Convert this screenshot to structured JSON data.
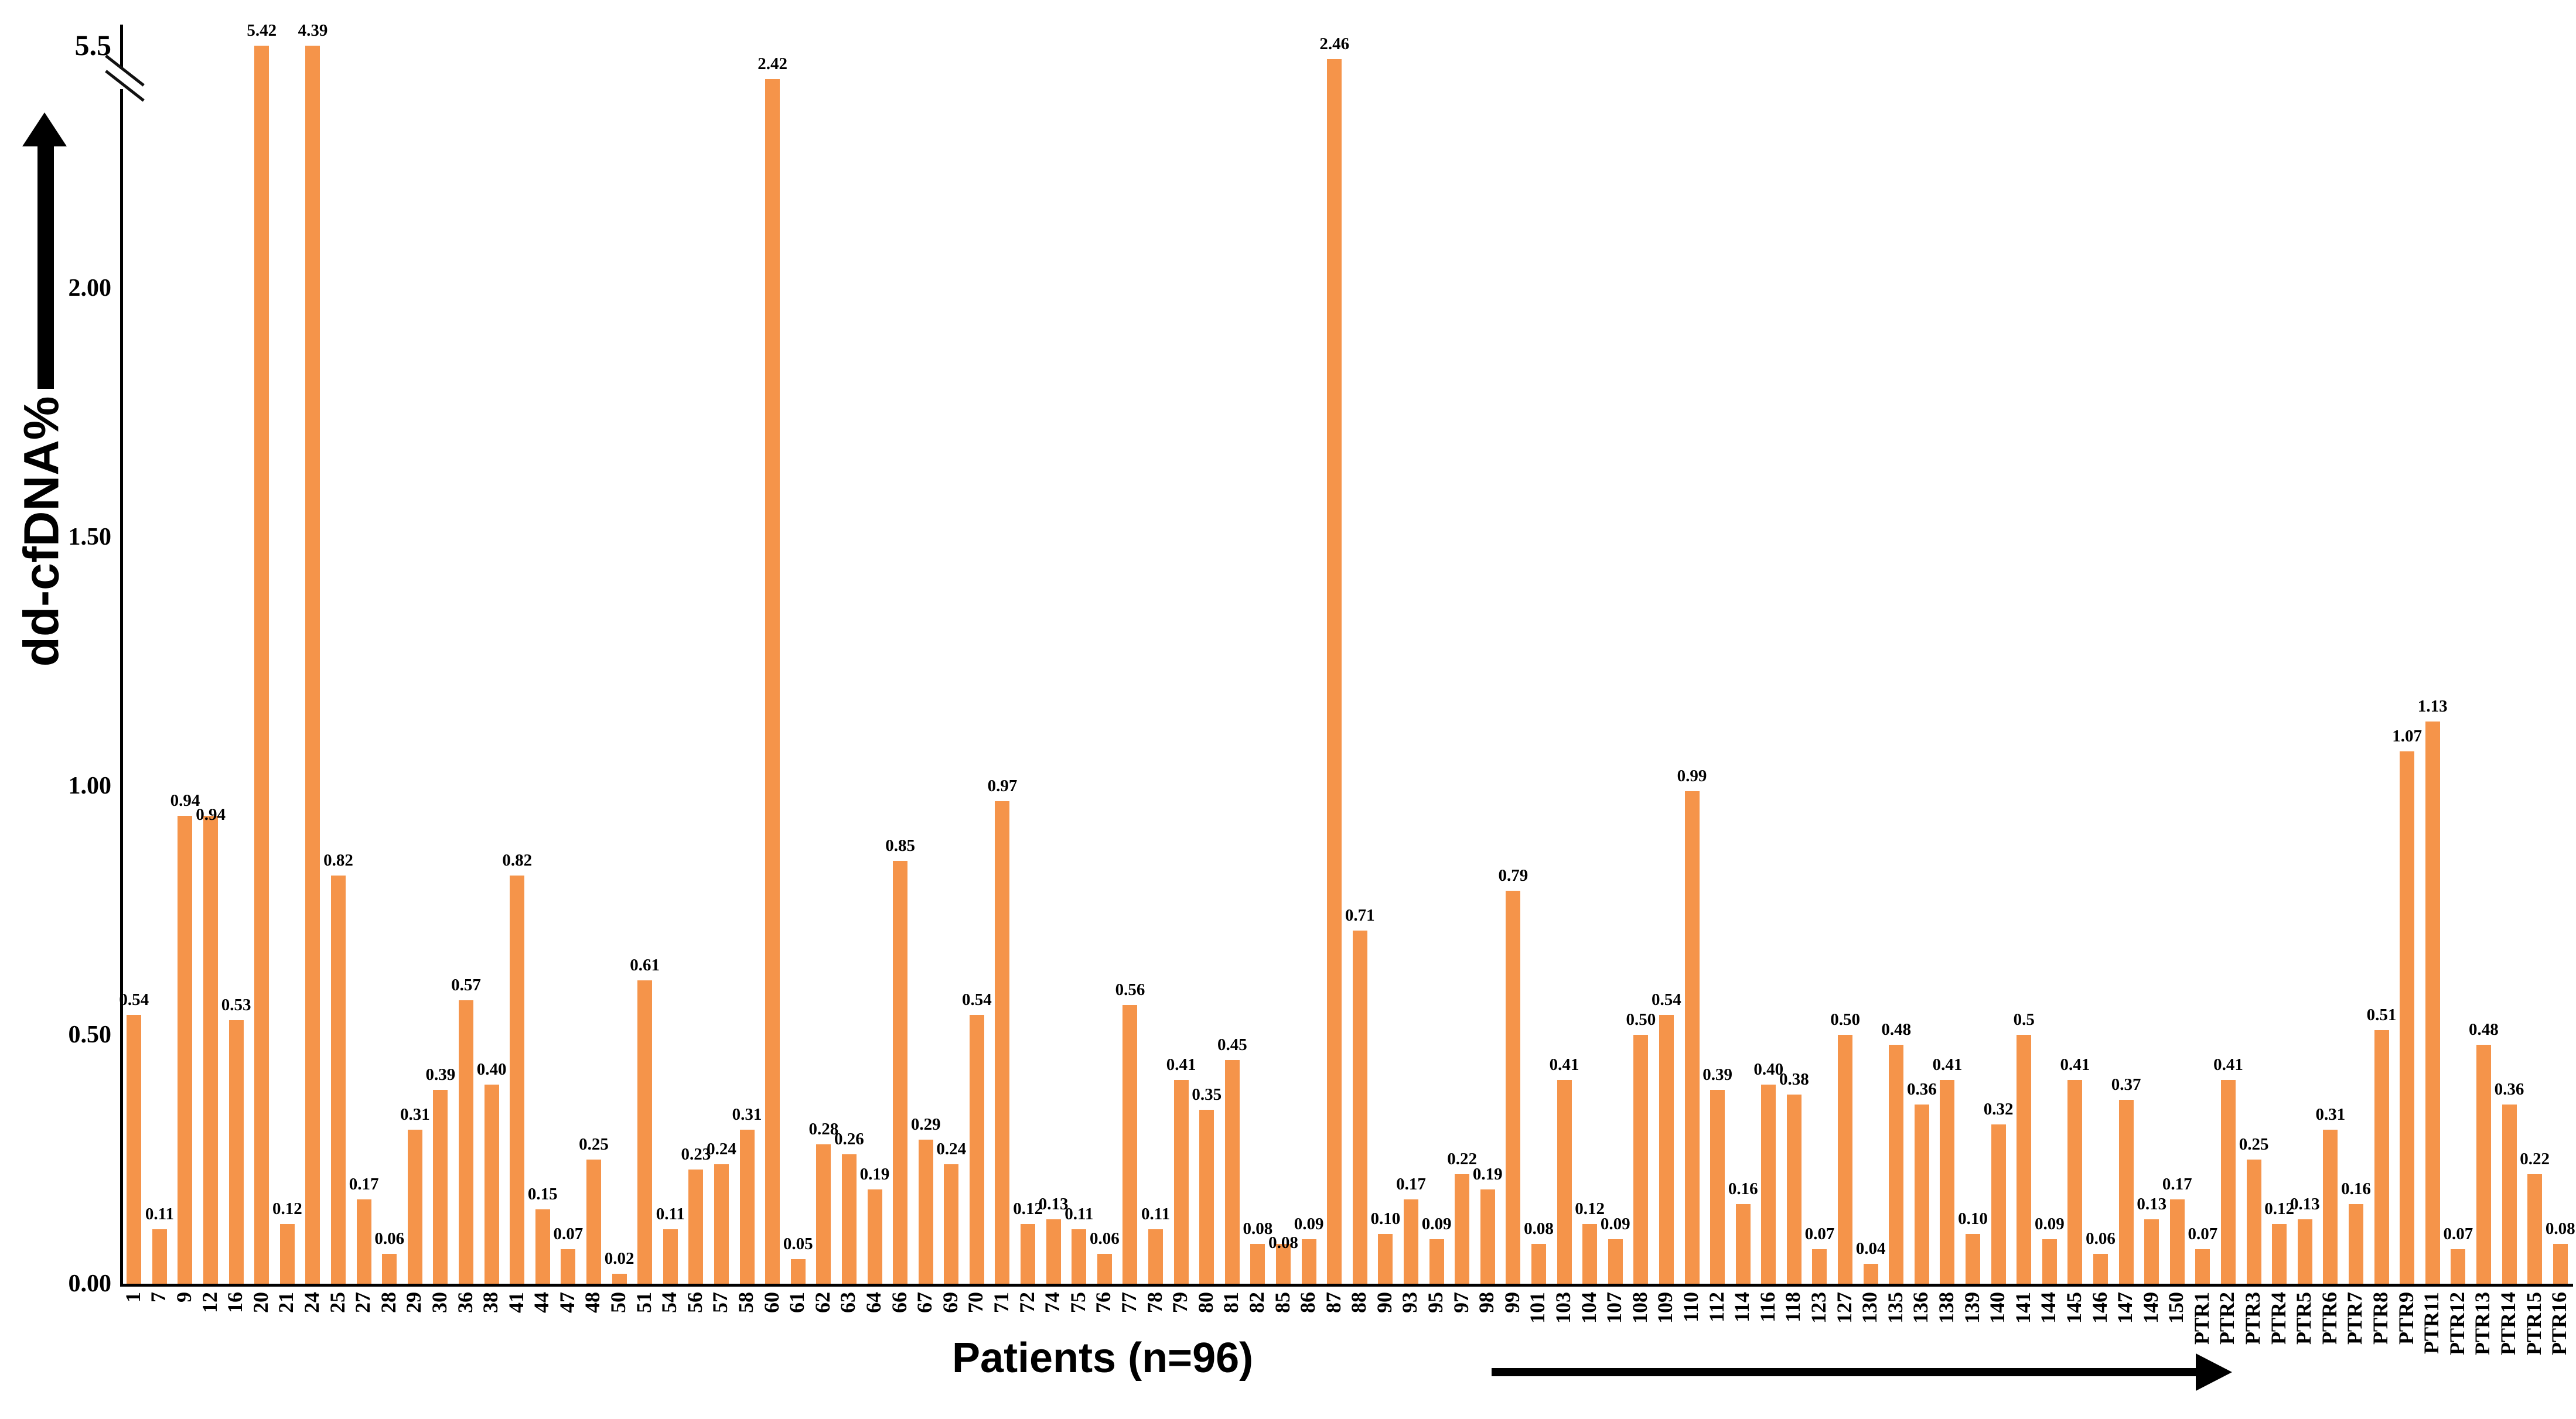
{
  "figure": {
    "bar_color": "#F5944A",
    "text_color": "#000000",
    "y_axis": {
      "label": "dd-cfDNA%",
      "ticks": [
        "0.00",
        "0.50",
        "1.00",
        "1.50",
        "2.00"
      ],
      "tick_values": [
        0,
        0.5,
        1.0,
        1.5,
        2.0
      ],
      "break_tick": "5.5",
      "has_axis_break": true
    },
    "x_axis": {
      "label": "Patients (n=96)"
    }
  },
  "chart_data": {
    "type": "bar",
    "title": "",
    "xlabel": "Patients (n=96)",
    "ylabel": "dd-cfDNA%",
    "ylim": [
      0,
      5.5
    ],
    "y_ticks": [
      0,
      0.5,
      1.0,
      1.5,
      2.0,
      5.5
    ],
    "axis_break_between": [
      2.0,
      5.5
    ],
    "grid": false,
    "legend": false,
    "categories": [
      "1",
      "7",
      "9",
      "12",
      "16",
      "20",
      "21",
      "24",
      "25",
      "27",
      "28",
      "29",
      "30",
      "36",
      "38",
      "41",
      "44",
      "47",
      "48",
      "50",
      "51",
      "54",
      "56",
      "57",
      "58",
      "60",
      "61",
      "62",
      "63",
      "64",
      "66",
      "67",
      "69",
      "70",
      "71",
      "72",
      "74",
      "75",
      "76",
      "77",
      "78",
      "79",
      "80",
      "81",
      "82",
      "85",
      "86",
      "87",
      "88",
      "90",
      "93",
      "95",
      "97",
      "98",
      "99",
      "101",
      "103",
      "104",
      "107",
      "108",
      "109",
      "110",
      "112",
      "114",
      "116",
      "118",
      "123",
      "127",
      "130",
      "135",
      "136",
      "138",
      "139",
      "140",
      "141",
      "144",
      "145",
      "146",
      "147",
      "149",
      "150",
      "PTR1",
      "PTR2",
      "PTR3",
      "PTR4",
      "PTR5",
      "PTR6",
      "PTR7",
      "PTR8",
      "PTR9",
      "PTR11",
      "PTR12",
      "PTR13",
      "PTR14",
      "PTR15",
      "PTR16"
    ],
    "values": [
      0.54,
      0.11,
      0.94,
      0.94,
      0.53,
      5.42,
      0.12,
      4.39,
      0.82,
      0.17,
      0.06,
      0.31,
      0.39,
      0.57,
      0.4,
      0.82,
      0.15,
      0.07,
      0.25,
      0.02,
      0.61,
      0.11,
      0.23,
      0.24,
      0.31,
      2.42,
      0.05,
      0.28,
      0.26,
      0.19,
      0.85,
      0.29,
      0.24,
      0.54,
      0.97,
      0.12,
      0.13,
      0.11,
      0.06,
      0.56,
      0.11,
      0.41,
      0.35,
      0.45,
      0.08,
      0.08,
      0.09,
      2.46,
      0.71,
      0.1,
      0.17,
      0.09,
      0.22,
      0.19,
      0.79,
      0.08,
      0.41,
      0.12,
      0.09,
      0.5,
      0.54,
      0.99,
      0.39,
      0.16,
      0.4,
      0.38,
      0.07,
      0.5,
      0.04,
      0.48,
      0.36,
      0.41,
      0.1,
      0.32,
      0.5,
      0.09,
      0.41,
      0.06,
      0.37,
      0.13,
      0.17,
      0.07,
      0.41,
      0.25,
      0.12,
      0.13,
      0.31,
      0.16,
      0.51,
      1.07,
      1.13,
      0.07,
      0.48,
      0.36,
      0.22,
      0.08
    ],
    "value_labels": [
      "0.54",
      "0.11",
      "0.94",
      "0.94",
      "0.53",
      "5.42",
      "0.12",
      "4.39",
      "0.82",
      "0.17",
      "0.06",
      "0.31",
      "0.39",
      "0.57",
      "0.40",
      "0.82",
      "0.15",
      "0.07",
      "0.25",
      "0.02",
      "0.61",
      "0.11",
      "0.23",
      "0.24",
      "0.31",
      "2.42",
      "0.05",
      "0.28",
      "0.26",
      "0.19",
      "0.85",
      "0.29",
      "0.24",
      "0.54",
      "0.97",
      "0.12",
      "0.13",
      "0.11",
      "0.06",
      "0.56",
      "0.11",
      "0.41",
      "0.35",
      "0.45",
      "0.08",
      "0.08",
      "0.09",
      "2.46",
      "0.71",
      "0.10",
      "0.17",
      "0.09",
      "0.22",
      "0.19",
      "0.79",
      "0.08",
      "0.41",
      "0.12",
      "0.09",
      "0.50",
      "0.54",
      "0.99",
      "0.39",
      "0.16",
      "0.40",
      "0.38",
      "0.07",
      "0.50",
      "0.04",
      "0.48",
      "0.36",
      "0.41",
      "0.10",
      "0.32",
      "0.5",
      "0.09",
      "0.41",
      "0.06",
      "0.37",
      "0.13",
      "0.17",
      "0.07",
      "0.41",
      "0.25",
      "0.12",
      "0.13",
      "0.31",
      "0.16",
      "0.51",
      "1.07",
      "1.13",
      "0.07",
      "0.48",
      "0.36",
      "0.22",
      "0.08"
    ]
  }
}
